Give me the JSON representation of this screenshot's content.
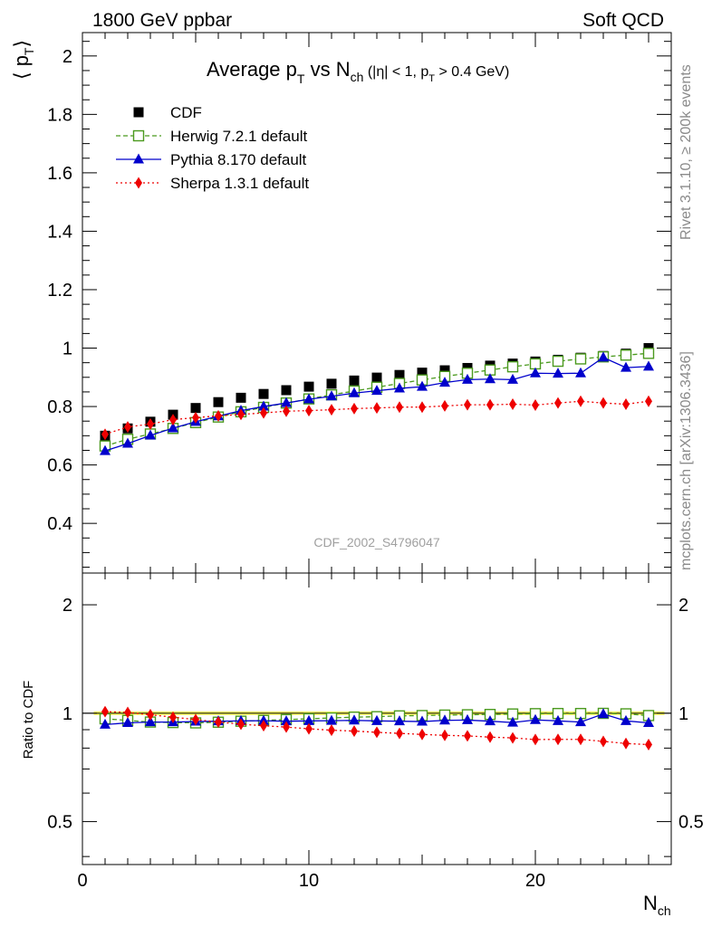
{
  "header": {
    "left": "1800 GeV ppbar",
    "right": "Soft QCD"
  },
  "side_text": {
    "rivet": "Rivet 3.1.10, ≥ 200k events",
    "mcplots": "mcplots.cern.ch [arXiv:1306.3436]"
  },
  "chart_data": [
    {
      "type": "scatter",
      "title_main": "Average p",
      "title_sub": "T",
      "title_mid": " vs N",
      "title_sub2": "ch",
      "title_cut_a": " (|η| < 1, p",
      "title_cut_sub": "T",
      "title_cut_b": " > 0.4 GeV)",
      "ylabel": "⟨ p",
      "ylabel_sub": "T",
      "ylabel_close": "⟩",
      "watermark": "CDF_2002_S4796047",
      "ylim": [
        0.23,
        2.08
      ],
      "xlim": [
        0,
        26
      ],
      "yticks": [
        0.4,
        0.6,
        0.8,
        1,
        1.2,
        1.4,
        1.6,
        1.8,
        2
      ],
      "ytick_labels": [
        "0.4",
        "0.6",
        "0.8",
        "1",
        "1.2",
        "1.4",
        "1.6",
        "1.8",
        "2"
      ],
      "legend_position": "top-left",
      "x": [
        1,
        2,
        3,
        4,
        5,
        6,
        7,
        8,
        9,
        10,
        11,
        12,
        13,
        14,
        15,
        16,
        17,
        18,
        19,
        20,
        21,
        22,
        23,
        24,
        25
      ],
      "series": [
        {
          "name": "CDF",
          "color": "#000000",
          "marker": "square-filled",
          "line": "none",
          "values": [
            0.7,
            0.725,
            0.748,
            0.772,
            0.795,
            0.815,
            0.83,
            0.843,
            0.856,
            0.868,
            0.878,
            0.889,
            0.899,
            0.908,
            0.916,
            0.924,
            0.932,
            0.94,
            0.947,
            0.954,
            0.96,
            0.967,
            0.973,
            0.981,
            1.0
          ]
        },
        {
          "name": "Herwig 7.2.1 default",
          "color": "#4b9a1e",
          "marker": "square-open",
          "line": "dashed",
          "values": [
            0.665,
            0.688,
            0.706,
            0.725,
            0.745,
            0.764,
            0.782,
            0.797,
            0.812,
            0.826,
            0.84,
            0.853,
            0.866,
            0.879,
            0.891,
            0.903,
            0.914,
            0.925,
            0.936,
            0.946,
            0.955,
            0.963,
            0.97,
            0.976,
            0.982
          ]
        },
        {
          "name": "Pythia 8.170 default",
          "color": "#0000cc",
          "marker": "triangle",
          "line": "solid",
          "values": [
            0.648,
            0.673,
            0.701,
            0.726,
            0.748,
            0.767,
            0.786,
            0.8,
            0.812,
            0.825,
            0.835,
            0.846,
            0.854,
            0.862,
            0.868,
            0.882,
            0.892,
            0.894,
            0.892,
            0.914,
            0.913,
            0.914,
            0.968,
            0.933,
            0.937
          ]
        },
        {
          "name": "Sherpa 1.3.1 default",
          "color": "#ee0000",
          "marker": "diamond",
          "line": "dotted",
          "values": [
            0.705,
            0.73,
            0.74,
            0.755,
            0.762,
            0.768,
            0.773,
            0.778,
            0.784,
            0.786,
            0.789,
            0.793,
            0.795,
            0.798,
            0.798,
            0.802,
            0.806,
            0.806,
            0.808,
            0.805,
            0.812,
            0.818,
            0.812,
            0.808,
            0.818
          ]
        }
      ]
    },
    {
      "type": "scatter",
      "ylabel": "Ratio to CDF",
      "xlabel": "N",
      "xlabel_sub": "ch",
      "ylim": [
        0.38,
        2.45
      ],
      "yscale": "log",
      "xlim": [
        0,
        26
      ],
      "yticks": [
        0.5,
        1,
        2
      ],
      "ytick_labels": [
        "0.5",
        "1",
        "2"
      ],
      "xticks": [
        0,
        10,
        20
      ],
      "xtick_labels": [
        "0",
        "10",
        "20"
      ],
      "band_color": "#ffff66",
      "x": [
        1,
        2,
        3,
        4,
        5,
        6,
        7,
        8,
        9,
        10,
        11,
        12,
        13,
        14,
        15,
        16,
        17,
        18,
        19,
        20,
        21,
        22,
        23,
        24,
        25
      ],
      "series": [
        {
          "name": "Herwig 7.2.1 default",
          "color": "#4b9a1e",
          "marker": "square-open",
          "line": "dashed",
          "values": [
            0.965,
            0.955,
            0.945,
            0.942,
            0.94,
            0.944,
            0.95,
            0.955,
            0.96,
            0.965,
            0.97,
            0.975,
            0.978,
            0.983,
            0.985,
            0.988,
            0.99,
            0.992,
            0.995,
            0.997,
            0.998,
            0.998,
            0.999,
            0.996,
            0.985
          ]
        },
        {
          "name": "Pythia 8.170 default",
          "color": "#0000cc",
          "marker": "triangle",
          "line": "solid",
          "values": [
            0.93,
            0.94,
            0.945,
            0.945,
            0.948,
            0.95,
            0.952,
            0.953,
            0.95,
            0.952,
            0.953,
            0.955,
            0.952,
            0.95,
            0.948,
            0.955,
            0.957,
            0.95,
            0.942,
            0.958,
            0.952,
            0.945,
            0.995,
            0.952,
            0.94
          ]
        },
        {
          "name": "Sherpa 1.3.1 default",
          "color": "#ee0000",
          "marker": "diamond",
          "line": "dotted",
          "values": [
            1.01,
            1.005,
            0.99,
            0.975,
            0.96,
            0.945,
            0.932,
            0.923,
            0.915,
            0.905,
            0.897,
            0.892,
            0.885,
            0.879,
            0.873,
            0.868,
            0.865,
            0.858,
            0.854,
            0.845,
            0.846,
            0.846,
            0.835,
            0.824,
            0.818
          ]
        }
      ]
    }
  ]
}
